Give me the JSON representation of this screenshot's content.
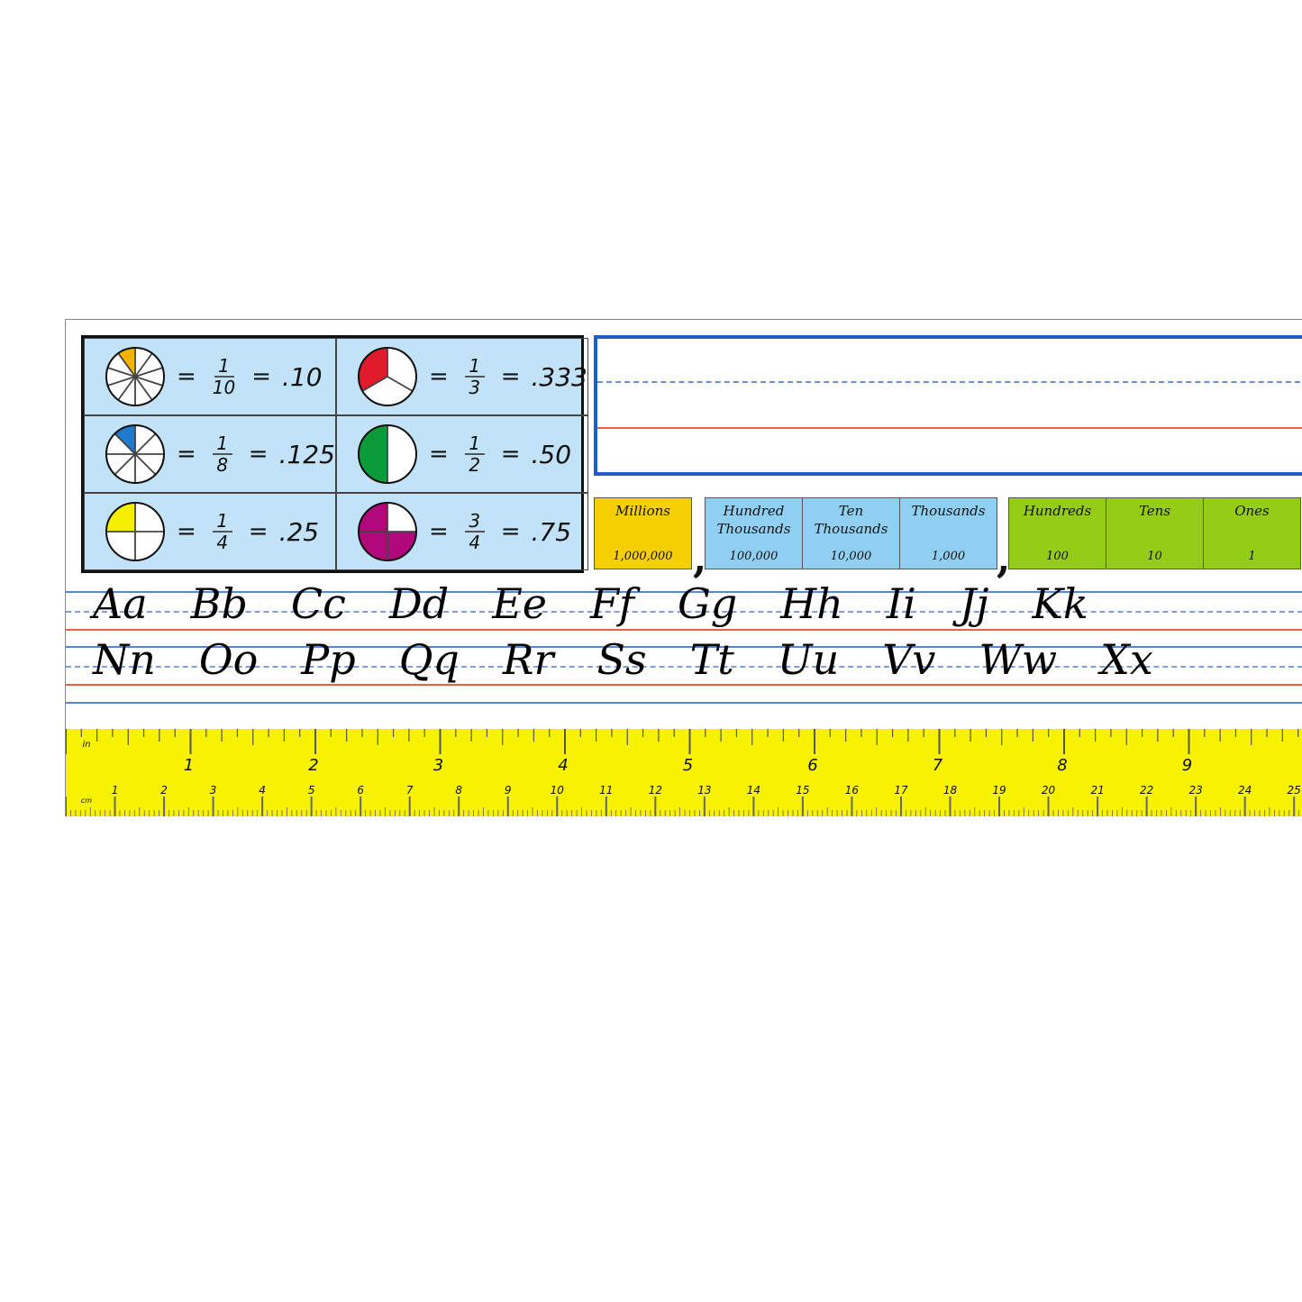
{
  "fractions": [
    {
      "parts": 10,
      "filled": 1,
      "color": "#f0b400",
      "num": "1",
      "den": "10",
      "decimal": ".10"
    },
    {
      "parts": 3,
      "filled": 1,
      "color": "#e01b2a",
      "num": "1",
      "den": "3",
      "decimal": ".333"
    },
    {
      "parts": 8,
      "filled": 1,
      "color": "#1f7acc",
      "num": "1",
      "den": "8",
      "decimal": ".125"
    },
    {
      "parts": 2,
      "filled": 1,
      "color": "#0a9a3a",
      "num": "1",
      "den": "2",
      "decimal": ".50"
    },
    {
      "parts": 4,
      "filled": 1,
      "color": "#f5ee00",
      "num": "1",
      "den": "4",
      "decimal": ".25"
    },
    {
      "parts": 4,
      "filled": 3,
      "color": "#b0077a",
      "num": "3",
      "den": "4",
      "decimal": ".75"
    }
  ],
  "equals": "=",
  "place_value": {
    "groups": [
      {
        "color": "#f6cf00",
        "cells": [
          {
            "name": "Millions",
            "value": "1,000,000"
          }
        ]
      },
      {
        "color": "#8fd0f2",
        "cells": [
          {
            "name": "Hundred Thousands",
            "value": "100,000"
          },
          {
            "name": "Ten Thousands",
            "value": "10,000"
          },
          {
            "name": "Thousands",
            "value": "1,000"
          }
        ]
      },
      {
        "color": "#94cc18",
        "cells": [
          {
            "name": "Hundreds",
            "value": "100"
          },
          {
            "name": "Tens",
            "value": "10"
          },
          {
            "name": "Ones",
            "value": "1"
          }
        ]
      }
    ],
    "separator": ","
  },
  "alphabet": {
    "row1": [
      "Aa",
      "Bb",
      "Cc",
      "Dd",
      "Ee",
      "Ff",
      "Gg",
      "Hh",
      "Ii",
      "Jj",
      "Kk"
    ],
    "row2": [
      "Nn",
      "Oo",
      "Pp",
      "Qq",
      "Rr",
      "Ss",
      "Tt",
      "Uu",
      "Vv",
      "Ww",
      "Xx"
    ]
  },
  "ruler": {
    "inch_label": "in",
    "cm_label": "cm",
    "inch_numbers": [
      "1",
      "2",
      "3",
      "4",
      "5",
      "6",
      "7",
      "8",
      "9"
    ],
    "cm_numbers": [
      "1",
      "2",
      "3",
      "4",
      "5",
      "6",
      "7",
      "8",
      "9",
      "10",
      "11",
      "12",
      "13",
      "14",
      "15",
      "16",
      "17",
      "18",
      "19",
      "20",
      "21",
      "22",
      "23",
      "24",
      "25"
    ],
    "color": "#f7f200"
  }
}
